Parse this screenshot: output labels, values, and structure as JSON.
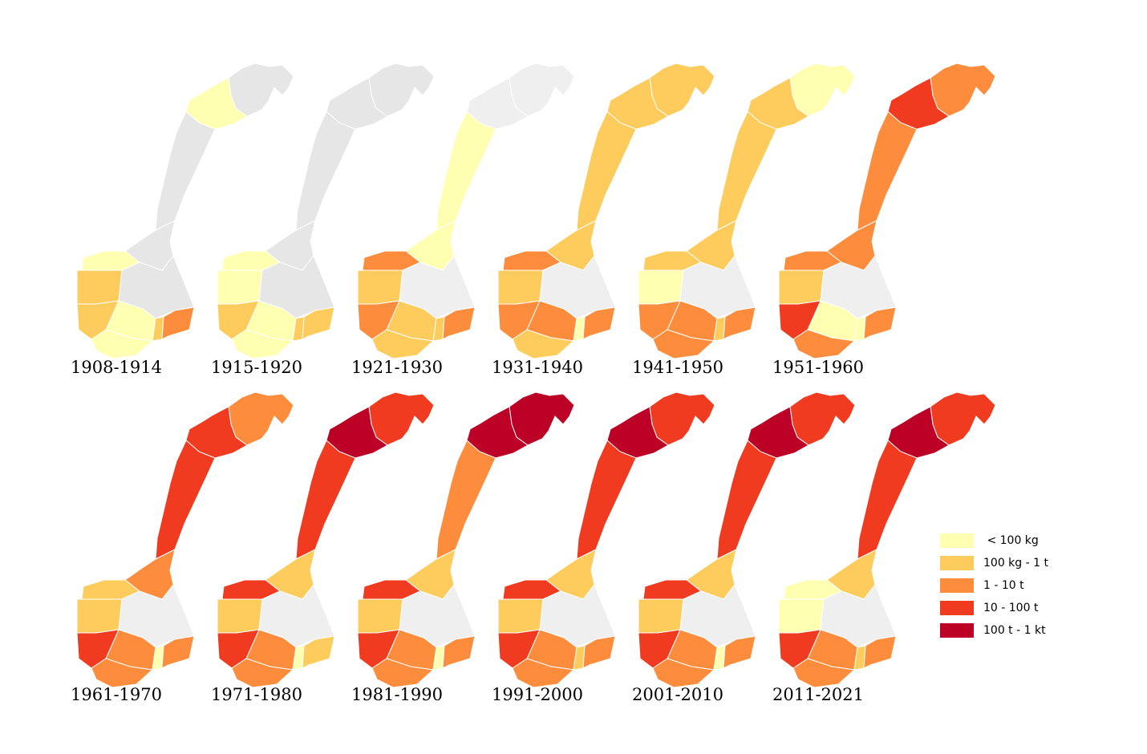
{
  "classes": [
    {
      "label": "",
      "color": "#e6e6e6"
    },
    {
      "label": "< 100 kg",
      "color": "#ffffb2"
    },
    {
      "label": "100 kg - 1 t",
      "color": "#fecc5c"
    },
    {
      "label": "1 - 10 t",
      "color": "#fd8d3c"
    },
    {
      "label": "10 - 100 t",
      "color": "#f03b20"
    },
    {
      "label": "100 t - 1 kt",
      "color": "#bd0026"
    }
  ],
  "legend": [
    {
      "label": " < 100 kg",
      "class": 1
    },
    {
      "label": "100 kg - 1 t",
      "class": 2
    },
    {
      "label": "1 - 10 t",
      "class": 3
    },
    {
      "label": "10 - 100 t",
      "class": 4
    },
    {
      "label": "100 t - 1 kt",
      "class": 5
    }
  ],
  "regions": [
    "finnmark",
    "troms",
    "nordland",
    "trondelag",
    "more-og-romsdal",
    "vestland",
    "innlandet",
    "telemark-buskerud",
    "rogaland",
    "agder",
    "vestfold",
    "ostfold"
  ],
  "periods": [
    {
      "label": "1908-1914",
      "classes": [
        0,
        1,
        0,
        0,
        1,
        2,
        0,
        1,
        2,
        1,
        2,
        3
      ]
    },
    {
      "label": "1915-1920",
      "classes": [
        0,
        0,
        0,
        0,
        1,
        1,
        0,
        1,
        2,
        1,
        2,
        2
      ]
    },
    {
      "label": "1921-1930",
      "classes": [
        0,
        0,
        1,
        1,
        3,
        2,
        0,
        2,
        3,
        2,
        2,
        3
      ]
    },
    {
      "label": "1931-1940",
      "classes": [
        2,
        2,
        2,
        2,
        3,
        2,
        0,
        3,
        3,
        2,
        1,
        3
      ]
    },
    {
      "label": "1941-1950",
      "classes": [
        1,
        2,
        2,
        2,
        2,
        1,
        0,
        3,
        3,
        3,
        2,
        3
      ]
    },
    {
      "label": "1951-1960",
      "classes": [
        3,
        4,
        3,
        3,
        3,
        2,
        0,
        1,
        4,
        3,
        1,
        3
      ]
    },
    {
      "label": "1961-1970",
      "classes": [
        3,
        4,
        4,
        3,
        2,
        2,
        0,
        3,
        4,
        3,
        1,
        3
      ]
    },
    {
      "label": "1971-1980",
      "classes": [
        4,
        5,
        4,
        2,
        4,
        2,
        0,
        3,
        4,
        3,
        1,
        2
      ]
    },
    {
      "label": "1981-1990",
      "classes": [
        5,
        5,
        3,
        2,
        4,
        2,
        0,
        3,
        4,
        3,
        1,
        3
      ]
    },
    {
      "label": "1991-2000",
      "classes": [
        4,
        5,
        4,
        2,
        4,
        2,
        0,
        3,
        4,
        3,
        2,
        3
      ]
    },
    {
      "label": "2001-2010",
      "classes": [
        4,
        5,
        4,
        2,
        4,
        2,
        0,
        3,
        4,
        3,
        1,
        3
      ]
    },
    {
      "label": "2011-2021",
      "classes": [
        4,
        5,
        4,
        2,
        1,
        1,
        0,
        3,
        4,
        3,
        2,
        3
      ]
    }
  ]
}
